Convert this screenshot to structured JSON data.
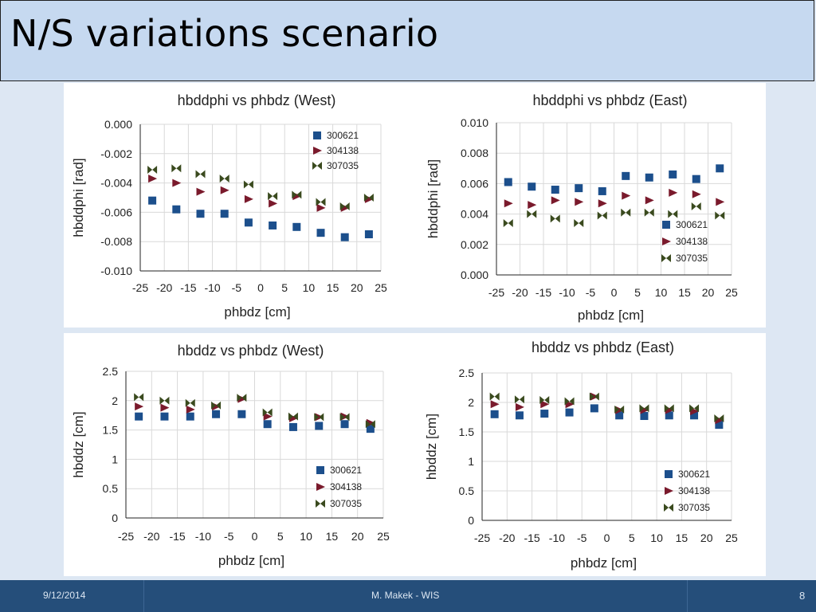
{
  "slide": {
    "title": "N/S variations scenario"
  },
  "footer": {
    "date": "9/12/2014",
    "author": "M. Makek - WIS",
    "page": "8"
  },
  "chart_data": [
    {
      "type": "scatter",
      "title": "hbddphi vs phbdz (West)",
      "xlabel": "phbdz [cm]",
      "ylabel": "hbddphi [rad]",
      "xlim": [
        -25,
        25
      ],
      "ylim": [
        -0.01,
        0.0
      ],
      "xticks": [
        "-25",
        "-20",
        "-15",
        "-10",
        "-5",
        "0",
        "5",
        "10",
        "15",
        "20",
        "25"
      ],
      "yticks": [
        "0.000",
        "-0.002",
        "-0.004",
        "-0.006",
        "-0.008",
        "-0.010"
      ],
      "grid": true,
      "legend_position": "top-right",
      "x": [
        -22.5,
        -17.5,
        -12.5,
        -7.5,
        -2.5,
        2.5,
        7.5,
        12.5,
        17.5,
        22.5
      ],
      "series": [
        {
          "name": "300621",
          "marker": "square",
          "color": "#1c4f8c",
          "values": [
            -0.0052,
            -0.0058,
            -0.0061,
            -0.0061,
            -0.0067,
            -0.0069,
            -0.007,
            -0.0074,
            -0.0077,
            -0.0075
          ]
        },
        {
          "name": "304138",
          "marker": "triangle",
          "color": "#7a1a2c",
          "values": [
            -0.0037,
            -0.004,
            -0.0046,
            -0.0045,
            -0.0051,
            -0.0054,
            -0.0049,
            -0.0057,
            -0.0057,
            -0.0051
          ]
        },
        {
          "name": "307035",
          "marker": "bowtie",
          "color": "#3a4a1e",
          "values": [
            -0.0031,
            -0.003,
            -0.0034,
            -0.0037,
            -0.0041,
            -0.0049,
            -0.0048,
            -0.0053,
            -0.0056,
            -0.005
          ]
        }
      ]
    },
    {
      "type": "scatter",
      "title": "hbddphi vs phbdz (East)",
      "xlabel": "phbdz [cm]",
      "ylabel": "hbddphi [rad]",
      "xlim": [
        -25,
        25
      ],
      "ylim": [
        0.0,
        0.01
      ],
      "xticks": [
        "-25",
        "-20",
        "-15",
        "-10",
        "-5",
        "0",
        "5",
        "10",
        "15",
        "20",
        "25"
      ],
      "yticks": [
        "0.010",
        "0.008",
        "0.006",
        "0.004",
        "0.002",
        "0.000"
      ],
      "grid": true,
      "legend_position": "bottom-right",
      "x": [
        -22.5,
        -17.5,
        -12.5,
        -7.5,
        -2.5,
        2.5,
        7.5,
        12.5,
        17.5,
        22.5
      ],
      "series": [
        {
          "name": "300621",
          "marker": "square",
          "color": "#1c4f8c",
          "values": [
            0.0061,
            0.0058,
            0.0056,
            0.0057,
            0.0055,
            0.0065,
            0.0064,
            0.0066,
            0.0063,
            0.007
          ]
        },
        {
          "name": "304138",
          "marker": "triangle",
          "color": "#7a1a2c",
          "values": [
            0.0047,
            0.0046,
            0.0049,
            0.0048,
            0.0047,
            0.0052,
            0.0049,
            0.0054,
            0.0053,
            0.0048
          ]
        },
        {
          "name": "307035",
          "marker": "bowtie",
          "color": "#3a4a1e",
          "values": [
            0.0034,
            0.004,
            0.0037,
            0.0034,
            0.0039,
            0.0041,
            0.0041,
            0.004,
            0.0045,
            0.0039
          ]
        }
      ]
    },
    {
      "type": "scatter",
      "title": "hbddz vs phbdz (West)",
      "xlabel": "phbdz [cm]",
      "ylabel": "hbddz [cm]",
      "xlim": [
        -25,
        25
      ],
      "ylim": [
        0,
        2.5
      ],
      "xticks": [
        "-25",
        "-20",
        "-15",
        "-10",
        "-5",
        "0",
        "5",
        "10",
        "15",
        "20",
        "25"
      ],
      "yticks": [
        "2.5",
        "2",
        "1.5",
        "1",
        "0.5",
        "0"
      ],
      "grid": true,
      "legend_position": "bottom-right",
      "x": [
        -22.5,
        -17.5,
        -12.5,
        -7.5,
        -2.5,
        2.5,
        7.5,
        12.5,
        17.5,
        22.5
      ],
      "series": [
        {
          "name": "300621",
          "marker": "square",
          "color": "#1c4f8c",
          "values": [
            1.73,
            1.73,
            1.73,
            1.77,
            1.77,
            1.6,
            1.55,
            1.57,
            1.6,
            1.52
          ]
        },
        {
          "name": "304138",
          "marker": "triangle",
          "color": "#7a1a2c",
          "values": [
            1.9,
            1.88,
            1.85,
            1.9,
            2.03,
            1.73,
            1.7,
            1.72,
            1.73,
            1.62
          ]
        },
        {
          "name": "307035",
          "marker": "bowtie",
          "color": "#3a4a1e",
          "values": [
            2.06,
            2.0,
            1.96,
            1.92,
            2.05,
            1.8,
            1.73,
            1.72,
            1.72,
            1.6
          ]
        }
      ]
    },
    {
      "type": "scatter",
      "title": "hbddz vs phbdz (East)",
      "xlabel": "phbdz [cm]",
      "ylabel": "hbddz [cm]",
      "xlim": [
        -25,
        25
      ],
      "ylim": [
        0,
        2.5
      ],
      "xticks": [
        "-25",
        "-20",
        "-15",
        "-10",
        "-5",
        "0",
        "5",
        "10",
        "15",
        "20",
        "25"
      ],
      "yticks": [
        "2.5",
        "2",
        "1.5",
        "1",
        "0.5",
        "0"
      ],
      "grid": true,
      "legend_position": "bottom-right",
      "x": [
        -22.5,
        -17.5,
        -12.5,
        -7.5,
        -2.5,
        2.5,
        7.5,
        12.5,
        17.5,
        22.5
      ],
      "series": [
        {
          "name": "300621",
          "marker": "square",
          "color": "#1c4f8c",
          "values": [
            1.8,
            1.78,
            1.81,
            1.83,
            1.9,
            1.78,
            1.77,
            1.78,
            1.78,
            1.62
          ]
        },
        {
          "name": "304138",
          "marker": "triangle",
          "color": "#7a1a2c",
          "values": [
            1.97,
            1.92,
            1.97,
            1.97,
            2.1,
            1.87,
            1.87,
            1.87,
            1.85,
            1.7
          ]
        },
        {
          "name": "307035",
          "marker": "bowtie",
          "color": "#3a4a1e",
          "values": [
            2.1,
            2.05,
            2.04,
            2.02,
            2.1,
            1.88,
            1.9,
            1.9,
            1.9,
            1.73
          ]
        }
      ]
    }
  ]
}
